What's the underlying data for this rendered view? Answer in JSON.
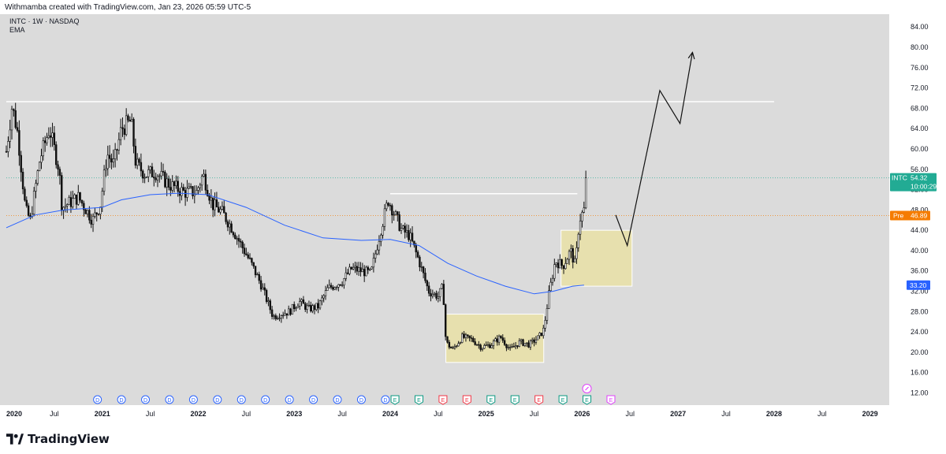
{
  "header": {
    "credit": "Withmamba created with TradingView.com, Jan 23, 2026 05:59 UTC-5"
  },
  "brand": {
    "name": "TradingView"
  },
  "chart_data": {
    "type": "candlestick",
    "title": "INTC · 1W · NASDAQ",
    "subtitle": "EMA",
    "x_range": [
      2020.0,
      2029.2
    ],
    "ylim": [
      9.6,
      86.2
    ],
    "y_ticks": [
      "12.00",
      "16.00",
      "20.00",
      "24.00",
      "28.00",
      "32.00",
      "36.00",
      "40.00",
      "44.00",
      "48.00",
      "52.00",
      "56.00",
      "60.00",
      "64.00",
      "68.00",
      "72.00",
      "76.00",
      "80.00",
      "84.00"
    ],
    "x_ticks": [
      {
        "t": 2020.0,
        "label": "2020",
        "bold": true
      },
      {
        "t": 2020.5,
        "label": "Jul",
        "bold": false
      },
      {
        "t": 2021.0,
        "label": "2021",
        "bold": true
      },
      {
        "t": 2021.5,
        "label": "Jul",
        "bold": false
      },
      {
        "t": 2022.0,
        "label": "2022",
        "bold": true
      },
      {
        "t": 2022.5,
        "label": "Jul",
        "bold": false
      },
      {
        "t": 2023.0,
        "label": "2023",
        "bold": true
      },
      {
        "t": 2023.5,
        "label": "Jul",
        "bold": false
      },
      {
        "t": 2024.0,
        "label": "2024",
        "bold": true
      },
      {
        "t": 2024.5,
        "label": "Jul",
        "bold": false
      },
      {
        "t": 2025.0,
        "label": "2025",
        "bold": true
      },
      {
        "t": 2025.5,
        "label": "Jul",
        "bold": false
      },
      {
        "t": 2026.0,
        "label": "2026",
        "bold": true
      },
      {
        "t": 2026.5,
        "label": "Jul",
        "bold": false
      },
      {
        "t": 2027.0,
        "label": "2027",
        "bold": true
      },
      {
        "t": 2027.5,
        "label": "Jul",
        "bold": false
      },
      {
        "t": 2028.0,
        "label": "2028",
        "bold": true
      },
      {
        "t": 2028.5,
        "label": "Jul",
        "bold": false
      },
      {
        "t": 2029.0,
        "label": "2029",
        "bold": true
      }
    ],
    "price_path": [
      [
        2020.0,
        59.5
      ],
      [
        2020.06,
        68.5
      ],
      [
        2020.12,
        63.0
      ],
      [
        2020.2,
        48.0
      ],
      [
        2020.25,
        46.0
      ],
      [
        2020.35,
        58.0
      ],
      [
        2020.45,
        64.0
      ],
      [
        2020.55,
        56.0
      ],
      [
        2020.58,
        48.5
      ],
      [
        2020.75,
        50.5
      ],
      [
        2020.9,
        46.0
      ],
      [
        2020.98,
        49.0
      ],
      [
        2021.05,
        59.0
      ],
      [
        2021.12,
        57.0
      ],
      [
        2021.2,
        64.0
      ],
      [
        2021.3,
        65.5
      ],
      [
        2021.35,
        57.0
      ],
      [
        2021.45,
        55.0
      ],
      [
        2021.55,
        55.5
      ],
      [
        2021.7,
        53.0
      ],
      [
        2021.85,
        51.5
      ],
      [
        2021.98,
        51.5
      ],
      [
        2022.05,
        55.0
      ],
      [
        2022.15,
        49.0
      ],
      [
        2022.25,
        47.5
      ],
      [
        2022.35,
        44.5
      ],
      [
        2022.45,
        41.0
      ],
      [
        2022.55,
        37.5
      ],
      [
        2022.65,
        33.5
      ],
      [
        2022.72,
        30.0
      ],
      [
        2022.78,
        27.0
      ],
      [
        2022.85,
        27.5
      ],
      [
        2022.95,
        28.0
      ],
      [
        2023.05,
        30.0
      ],
      [
        2023.15,
        28.5
      ],
      [
        2023.25,
        29.0
      ],
      [
        2023.35,
        32.5
      ],
      [
        2023.5,
        34.0
      ],
      [
        2023.6,
        36.5
      ],
      [
        2023.7,
        36.0
      ],
      [
        2023.8,
        35.5
      ],
      [
        2023.9,
        44.0
      ],
      [
        2023.98,
        50.0
      ],
      [
        2024.05,
        47.0
      ],
      [
        2024.12,
        44.0
      ],
      [
        2024.2,
        43.0
      ],
      [
        2024.3,
        38.0
      ],
      [
        2024.4,
        32.0
      ],
      [
        2024.5,
        31.0
      ],
      [
        2024.55,
        33.0
      ],
      [
        2024.58,
        22.0
      ],
      [
        2024.65,
        20.5
      ],
      [
        2024.75,
        23.0
      ],
      [
        2024.85,
        22.5
      ],
      [
        2024.95,
        21.0
      ],
      [
        2025.05,
        21.5
      ],
      [
        2025.15,
        23.0
      ],
      [
        2025.25,
        20.5
      ],
      [
        2025.35,
        22.0
      ],
      [
        2025.45,
        21.5
      ],
      [
        2025.55,
        23.0
      ],
      [
        2025.6,
        24.5
      ],
      [
        2025.65,
        31.0
      ],
      [
        2025.72,
        38.0
      ],
      [
        2025.8,
        37.0
      ],
      [
        2025.88,
        40.0
      ],
      [
        2025.93,
        37.0
      ],
      [
        2025.97,
        46.0
      ],
      [
        2026.02,
        48.0
      ],
      [
        2026.05,
        54.32
      ]
    ],
    "candle_end_t": 2026.05,
    "ema_path": [
      [
        2020.0,
        44.5
      ],
      [
        2020.3,
        47.0
      ],
      [
        2020.6,
        48.0
      ],
      [
        2021.0,
        48.5
      ],
      [
        2021.2,
        50.0
      ],
      [
        2021.5,
        51.0
      ],
      [
        2021.8,
        51.3
      ],
      [
        2022.1,
        51.0
      ],
      [
        2022.5,
        48.5
      ],
      [
        2022.9,
        45.0
      ],
      [
        2023.3,
        42.5
      ],
      [
        2023.7,
        42.0
      ],
      [
        2024.0,
        42.2
      ],
      [
        2024.3,
        41.0
      ],
      [
        2024.6,
        37.5
      ],
      [
        2024.9,
        35.0
      ],
      [
        2025.2,
        33.0
      ],
      [
        2025.5,
        31.5
      ],
      [
        2025.7,
        32.0
      ],
      [
        2025.9,
        33.0
      ],
      [
        2026.02,
        33.2
      ]
    ],
    "series": [
      {
        "name": "INTC",
        "last_price": "54.32",
        "countdown": "10:00:29",
        "color": "#22ab94"
      },
      {
        "name": "Pre",
        "last_price": "46.89",
        "color": "#f57c00"
      },
      {
        "name": "EMA",
        "last_price": "33.20",
        "color": "#2962ff"
      }
    ],
    "annotations": {
      "resistance_line": {
        "price": 69.3,
        "t_start": 2020.0,
        "t_end": 2028.0,
        "color": "#ffffff"
      },
      "prior_high_line": {
        "price": 51.2,
        "t_start": 2024.0,
        "t_end": 2025.95,
        "color": "#ffffff"
      },
      "demand_zone_low": {
        "t_start": 2024.58,
        "t_end": 2025.6,
        "price_low": 18.0,
        "price_high": 27.5
      },
      "demand_zone_high": {
        "t_start": 2025.78,
        "t_end": 2026.52,
        "price_low": 33.0,
        "price_high": 44.0
      },
      "projection_path": [
        [
          2026.35,
          47.0
        ],
        [
          2026.47,
          41.0
        ],
        [
          2026.81,
          71.5
        ],
        [
          2027.02,
          65.0
        ],
        [
          2027.15,
          79.0
        ]
      ]
    },
    "events": [
      {
        "t": 2020.95,
        "type": "D"
      },
      {
        "t": 2021.2,
        "type": "D"
      },
      {
        "t": 2021.45,
        "type": "D"
      },
      {
        "t": 2021.7,
        "type": "D"
      },
      {
        "t": 2021.95,
        "type": "D"
      },
      {
        "t": 2022.2,
        "type": "D"
      },
      {
        "t": 2022.45,
        "type": "D"
      },
      {
        "t": 2022.7,
        "type": "D"
      },
      {
        "t": 2022.95,
        "type": "D"
      },
      {
        "t": 2023.2,
        "type": "D"
      },
      {
        "t": 2023.45,
        "type": "D"
      },
      {
        "t": 2023.7,
        "type": "D"
      },
      {
        "t": 2023.95,
        "type": "D"
      },
      {
        "t": 2024.05,
        "type": "E",
        "tone": "green"
      },
      {
        "t": 2024.3,
        "type": "E",
        "tone": "green"
      },
      {
        "t": 2024.55,
        "type": "E",
        "tone": "red"
      },
      {
        "t": 2024.8,
        "type": "E",
        "tone": "red"
      },
      {
        "t": 2025.05,
        "type": "E",
        "tone": "green"
      },
      {
        "t": 2025.3,
        "type": "E",
        "tone": "green"
      },
      {
        "t": 2025.55,
        "type": "E",
        "tone": "red"
      },
      {
        "t": 2025.8,
        "type": "E",
        "tone": "green"
      },
      {
        "t": 2026.05,
        "type": "E",
        "tone": "green"
      },
      {
        "t": 2026.3,
        "type": "E",
        "tone": "pink"
      }
    ],
    "split_marker_t": 2026.05,
    "grid": false
  }
}
